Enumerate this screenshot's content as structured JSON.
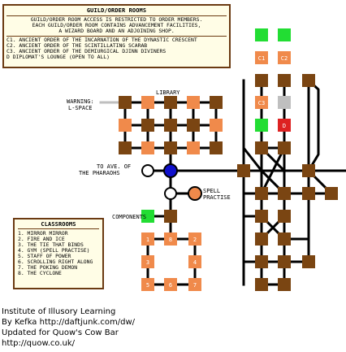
{
  "guild_legend": {
    "title": "GUILD/ORDER ROOMS",
    "intro": [
      "GUILD/ORDER ROOM ACCESS IS RESTRICTED TO ORDER MEMBERS.",
      "EACH GUILD/ORDER ROOM CONTAINS ADVANCEMENT FACILITIES,",
      "A WIZARD BOARD AND AN ADJOINING SHOP."
    ],
    "rooms": [
      "C1. ANCIENT ORDER OF THE INCARNATION OF THE DYNASTIC CRESCENT",
      "C2. ANCIENT ORDER OF THE SCINTILLATING SCARAB",
      "C3. ANCIENT ORDER OF THE DEMIURGICAL DJINN DIVINERS",
      "D    DIPLOMAT'S LOUNGE (OPEN TO ALL)"
    ]
  },
  "classrooms_legend": {
    "title": "CLASSROOMS",
    "items": [
      "1. MIRROR MIRROR",
      "2. FIRE AND ICE",
      "3. THE TIE THAT BINDS",
      "4. GYM (SPELL PRACTISE)",
      "5. STAFF OF POWER",
      "6. SCROLLING RIGHT ALONG",
      "7. THE POKING DEMON",
      "8. THE CYCLONE"
    ]
  },
  "labels": {
    "library": "LIBRARY",
    "warning": "WARNING:",
    "lspace": "L-SPACE",
    "to_ave_1": "TO AVE. OF",
    "to_ave_2": "THE PHARAOHS",
    "spell_1": "SPELL",
    "spell_2": "PRACTISE",
    "components": "COMPONENTS"
  },
  "room_codes": {
    "c1": "C1",
    "c2": "C2",
    "c3": "C3",
    "d": "D",
    "classroom_numbers": [
      "1",
      "2",
      "3",
      "4",
      "5",
      "6",
      "7",
      "8"
    ]
  },
  "credits": {
    "line1": "Institute of Illusory Learning",
    "line2": "By Kefka  http://daftjunk.com/dw/",
    "line3": "Updated for Quow's Cow Bar",
    "line4": "http://quow.co.uk/"
  },
  "colors": {
    "room_brown": "#7a4512",
    "room_orange": "#f08a4b",
    "room_green": "#22dd33",
    "room_red": "#dd2222",
    "you_are_here_blue": "#1010cc",
    "path_black": "#000000",
    "room_grey": "#bfbfbf"
  }
}
